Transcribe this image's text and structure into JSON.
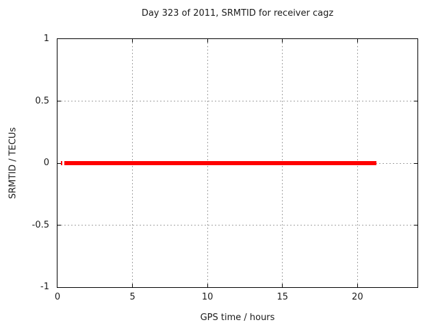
{
  "chart_data": {
    "type": "line",
    "title": "Day 323 of 2011, SRMTID for receiver cagz",
    "xlabel": "GPS time / hours",
    "ylabel": "SRMTID / TECUs",
    "xlim": [
      0,
      24
    ],
    "ylim": [
      -1,
      1
    ],
    "xticks": [
      0,
      5,
      10,
      15,
      20
    ],
    "xtick_labels": [
      "0",
      "5",
      "10",
      "15",
      "20"
    ],
    "yticks": [
      -1,
      -0.5,
      0,
      0.5,
      1
    ],
    "ytick_labels": [
      "-1",
      "-0.5",
      "0",
      "0.5",
      "1"
    ],
    "grid": true,
    "legend": "none",
    "colors": {
      "series": "#ff0000",
      "grid": "#a0a0a0",
      "border": "#000000",
      "text": "#1a1a1a",
      "background": "#ffffff"
    },
    "series": [
      {
        "name": "srmtid",
        "color": "#ff0000",
        "linewidth": 6,
        "y": 0,
        "segments": [
          [
            0.23,
            0.34
          ],
          [
            0.45,
            21.25
          ]
        ]
      }
    ]
  }
}
